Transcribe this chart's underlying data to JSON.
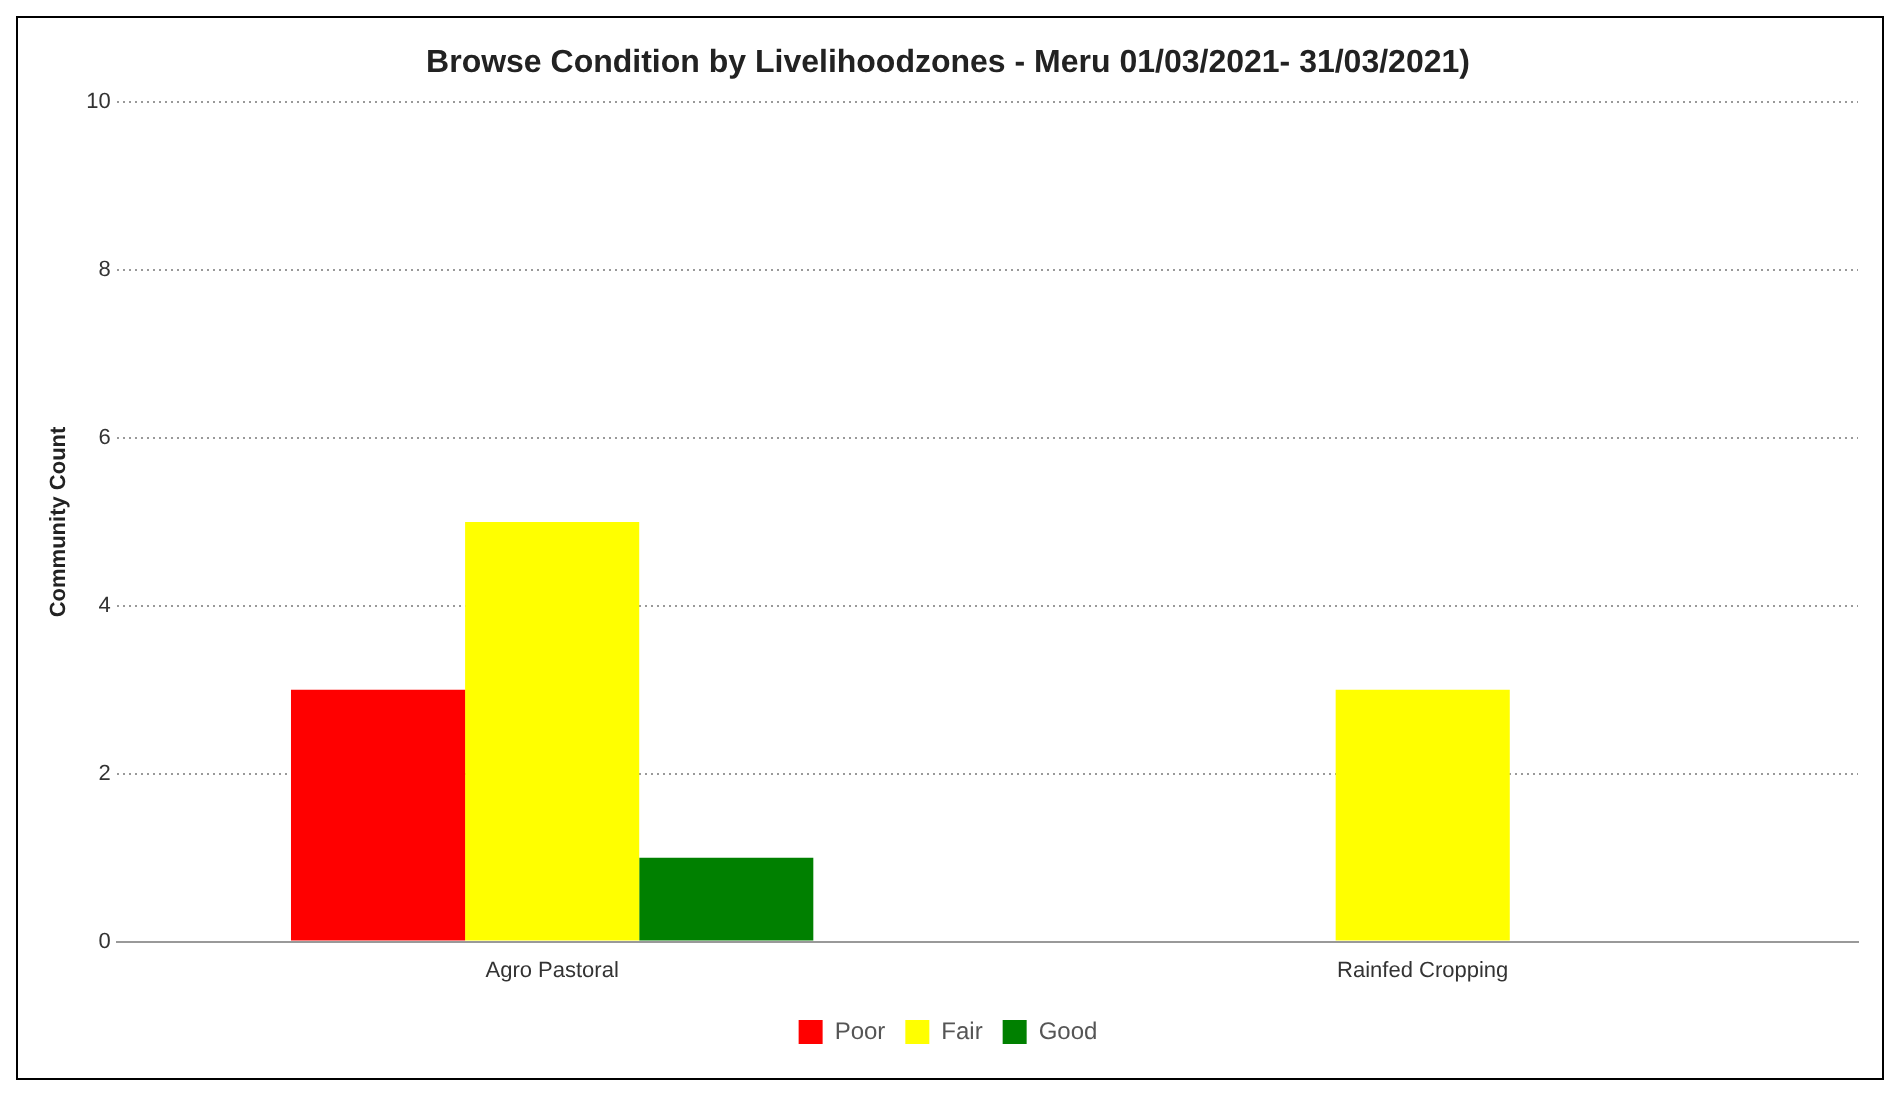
{
  "chart_data": {
    "type": "bar",
    "title": "Browse Condition by Livelihoodzones - Meru 01/03/2021- 31/03/2021)",
    "ylabel": "Community Count",
    "categories": [
      "Agro Pastoral",
      "Rainfed Cropping"
    ],
    "series": [
      {
        "name": "Poor",
        "color": "#ff0000",
        "values": [
          3,
          0
        ]
      },
      {
        "name": "Fair",
        "color": "#ffff00",
        "values": [
          5,
          3
        ]
      },
      {
        "name": "Good",
        "color": "#008000",
        "values": [
          1,
          0
        ]
      }
    ],
    "ylim": [
      0,
      10
    ],
    "yticks": [
      0,
      2,
      4,
      6,
      8,
      10
    ],
    "grid": "y",
    "legend": "bottom"
  }
}
